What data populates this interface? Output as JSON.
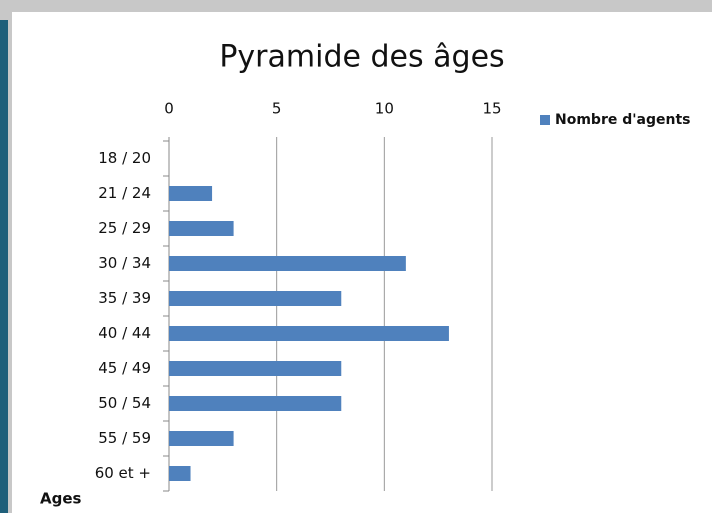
{
  "chart_data": {
    "type": "bar",
    "orientation": "horizontal",
    "title": "Pyramide des âges",
    "y_label": "Ages",
    "categories": [
      "18 / 20",
      "21 / 24",
      "25 / 29",
      "30 / 34",
      "35 / 39",
      "40 / 44",
      "45 / 49",
      "50 / 54",
      "55 / 59",
      "60 et +"
    ],
    "series": [
      {
        "name": "Nombre d'agents",
        "color": "#4f81bd",
        "values": [
          0,
          2,
          3,
          11,
          8,
          13,
          8,
          8,
          3,
          1
        ]
      }
    ],
    "xlim": [
      0,
      15
    ],
    "xticks": [
      0,
      5,
      10,
      15
    ],
    "grid": true,
    "legend": "top-right"
  }
}
